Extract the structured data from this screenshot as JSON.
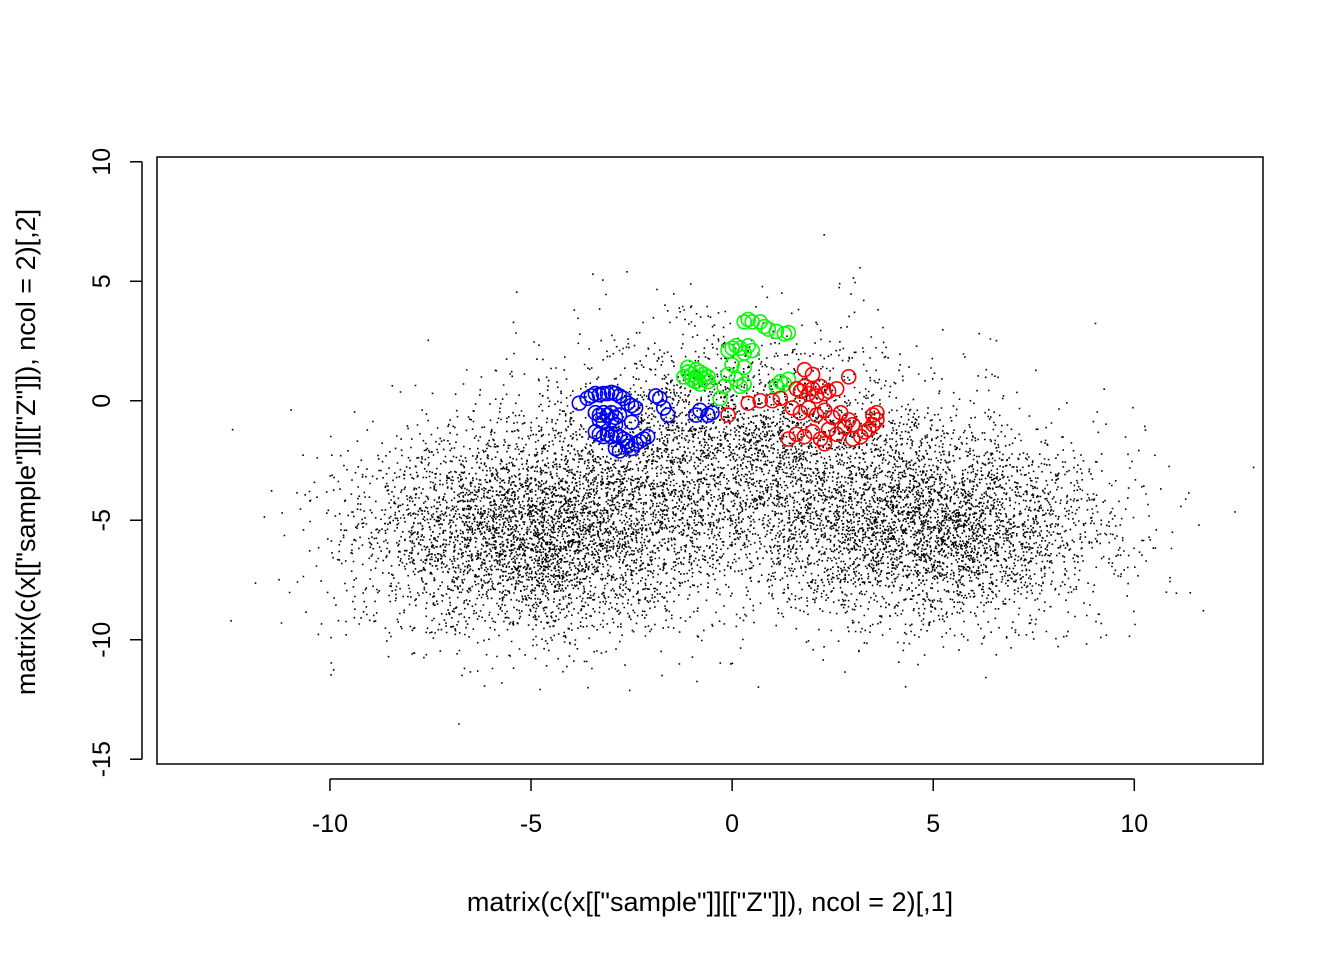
{
  "chart_data": {
    "type": "scatter",
    "title": "",
    "xlabel": "matrix(c(x[[\"sample\"]][[\"Z\"]]), ncol = 2)[,1]",
    "ylabel": "matrix(c(x[[\"sample\"]][[\"Z\"]]), ncol = 2)[,2]",
    "xlim": [
      -14.3,
      13.2
    ],
    "ylim": [
      -15.2,
      10.2
    ],
    "x_ticks": [
      -10,
      -5,
      0,
      5,
      10
    ],
    "x_tick_labels": [
      "-10",
      "-5",
      "0",
      "5",
      "10"
    ],
    "y_ticks": [
      -15,
      -10,
      -5,
      0,
      5,
      10
    ],
    "y_tick_labels": [
      "-15",
      "-10",
      "-5",
      "0",
      "5",
      "10"
    ],
    "grid": false,
    "legend": "none",
    "series": [
      {
        "color": "#000000",
        "marker": "dot",
        "description_of_density": "dense point cloud (two lobes)",
        "clusters": [
          {
            "center": [
              -5.0,
              -5.6
            ],
            "sd": [
              2.2,
              2.1
            ],
            "weight": 0.36
          },
          {
            "center": [
              5.0,
              -5.3
            ],
            "sd": [
              2.1,
              2.0
            ],
            "weight": 0.32
          },
          {
            "center": [
              0.0,
              -2.2
            ],
            "sd": [
              2.6,
              2.4
            ],
            "weight": 0.32
          }
        ]
      },
      {
        "color": "#0000FF",
        "marker": "open-circle",
        "values": [
          [
            -3.8,
            -0.1
          ],
          [
            -3.6,
            0.1
          ],
          [
            -3.5,
            0.2
          ],
          [
            -3.4,
            0.3
          ],
          [
            -3.3,
            0.25
          ],
          [
            -3.2,
            0.3
          ],
          [
            -3.1,
            0.3
          ],
          [
            -3.0,
            0.35
          ],
          [
            -2.9,
            0.3
          ],
          [
            -2.8,
            0.2
          ],
          [
            -2.7,
            0.1
          ],
          [
            -2.6,
            -0.1
          ],
          [
            -2.5,
            -0.2
          ],
          [
            -3.4,
            -0.5
          ],
          [
            -3.3,
            -0.6
          ],
          [
            -3.2,
            -0.5
          ],
          [
            -3.1,
            -0.6
          ],
          [
            -3.0,
            -0.5
          ],
          [
            -2.9,
            -0.7
          ],
          [
            -2.8,
            -0.6
          ],
          [
            -3.3,
            -0.8
          ],
          [
            -3.2,
            -0.9
          ],
          [
            -3.0,
            -0.8
          ],
          [
            -2.9,
            -1.0
          ],
          [
            -3.4,
            -1.3
          ],
          [
            -3.3,
            -1.4
          ],
          [
            -3.2,
            -1.5
          ],
          [
            -3.1,
            -1.4
          ],
          [
            -3.0,
            -1.5
          ],
          [
            -2.9,
            -1.4
          ],
          [
            -2.8,
            -1.5
          ],
          [
            -2.7,
            -1.6
          ],
          [
            -2.6,
            -1.7
          ],
          [
            -2.9,
            -2.0
          ],
          [
            -2.8,
            -2.1
          ],
          [
            -2.6,
            -1.9
          ],
          [
            -2.5,
            -2.0
          ],
          [
            -2.4,
            -1.8
          ],
          [
            -2.3,
            -1.7
          ],
          [
            -2.2,
            -1.6
          ],
          [
            -2.1,
            -1.5
          ],
          [
            -2.5,
            -0.9
          ],
          [
            -2.4,
            -0.3
          ],
          [
            -1.9,
            0.2
          ],
          [
            -1.8,
            0.1
          ],
          [
            -1.7,
            -0.3
          ],
          [
            -1.6,
            -0.6
          ],
          [
            -0.9,
            -0.6
          ],
          [
            -0.8,
            -0.4
          ],
          [
            -0.6,
            -0.6
          ],
          [
            -0.5,
            -0.5
          ]
        ]
      },
      {
        "color": "#00FF00",
        "marker": "open-circle",
        "values": [
          [
            -1.2,
            1.0
          ],
          [
            -1.1,
            1.2
          ],
          [
            -1.0,
            1.1
          ],
          [
            -0.9,
            1.0
          ],
          [
            -0.8,
            1.2
          ],
          [
            -1.0,
            0.9
          ],
          [
            -0.9,
            0.8
          ],
          [
            -0.8,
            0.7
          ],
          [
            -0.7,
            0.9
          ],
          [
            -0.6,
            0.8
          ],
          [
            -1.1,
            1.4
          ],
          [
            -0.9,
            1.3
          ],
          [
            -0.7,
            1.1
          ],
          [
            -0.6,
            1.0
          ],
          [
            -0.3,
            0.1
          ],
          [
            -0.2,
            0.6
          ],
          [
            -0.1,
            1.1
          ],
          [
            0.0,
            1.5
          ],
          [
            0.1,
            0.9
          ],
          [
            0.2,
            0.6
          ],
          [
            0.3,
            0.7
          ],
          [
            0.3,
            1.4
          ],
          [
            -0.1,
            2.1
          ],
          [
            0.0,
            2.2
          ],
          [
            0.1,
            2.3
          ],
          [
            0.2,
            2.2
          ],
          [
            0.3,
            2.0
          ],
          [
            0.4,
            2.3
          ],
          [
            0.5,
            2.1
          ],
          [
            0.3,
            3.3
          ],
          [
            0.4,
            3.4
          ],
          [
            0.5,
            3.3
          ],
          [
            0.7,
            3.3
          ],
          [
            0.8,
            3.1
          ],
          [
            0.9,
            3.0
          ],
          [
            1.1,
            2.9
          ],
          [
            1.3,
            2.8
          ],
          [
            1.4,
            2.85
          ],
          [
            1.1,
            0.6
          ],
          [
            1.2,
            0.8
          ],
          [
            1.3,
            0.7
          ],
          [
            1.4,
            0.9
          ]
        ]
      },
      {
        "color": "#FF0000",
        "marker": "open-circle",
        "values": [
          [
            -0.1,
            -0.6
          ],
          [
            0.4,
            -0.1
          ],
          [
            0.7,
            0.0
          ],
          [
            1.0,
            0.0
          ],
          [
            1.2,
            0.1
          ],
          [
            1.6,
            0.5
          ],
          [
            1.7,
            0.4
          ],
          [
            1.8,
            0.6
          ],
          [
            1.9,
            0.3
          ],
          [
            2.0,
            0.5
          ],
          [
            2.1,
            0.2
          ],
          [
            2.2,
            0.6
          ],
          [
            2.3,
            0.3
          ],
          [
            2.4,
            0.4
          ],
          [
            2.6,
            0.5
          ],
          [
            1.8,
            1.3
          ],
          [
            2.0,
            1.1
          ],
          [
            2.9,
            1.0
          ],
          [
            1.5,
            -0.3
          ],
          [
            1.7,
            -0.5
          ],
          [
            1.9,
            -0.3
          ],
          [
            2.1,
            -0.6
          ],
          [
            2.3,
            -0.4
          ],
          [
            2.5,
            -0.7
          ],
          [
            2.7,
            -0.5
          ],
          [
            2.9,
            -0.8
          ],
          [
            1.4,
            -1.6
          ],
          [
            1.6,
            -1.4
          ],
          [
            1.8,
            -1.5
          ],
          [
            2.0,
            -1.3
          ],
          [
            2.2,
            -1.6
          ],
          [
            2.4,
            -1.2
          ],
          [
            2.6,
            -1.4
          ],
          [
            2.8,
            -1.1
          ],
          [
            3.0,
            -1.0
          ],
          [
            2.3,
            -1.8
          ],
          [
            3.0,
            -1.6
          ],
          [
            3.2,
            -1.5
          ],
          [
            3.3,
            -1.3
          ],
          [
            3.4,
            -1.2
          ],
          [
            3.5,
            -1.0
          ],
          [
            3.6,
            -0.8
          ],
          [
            3.6,
            -0.5
          ],
          [
            3.5,
            -0.6
          ]
        ]
      }
    ]
  }
}
